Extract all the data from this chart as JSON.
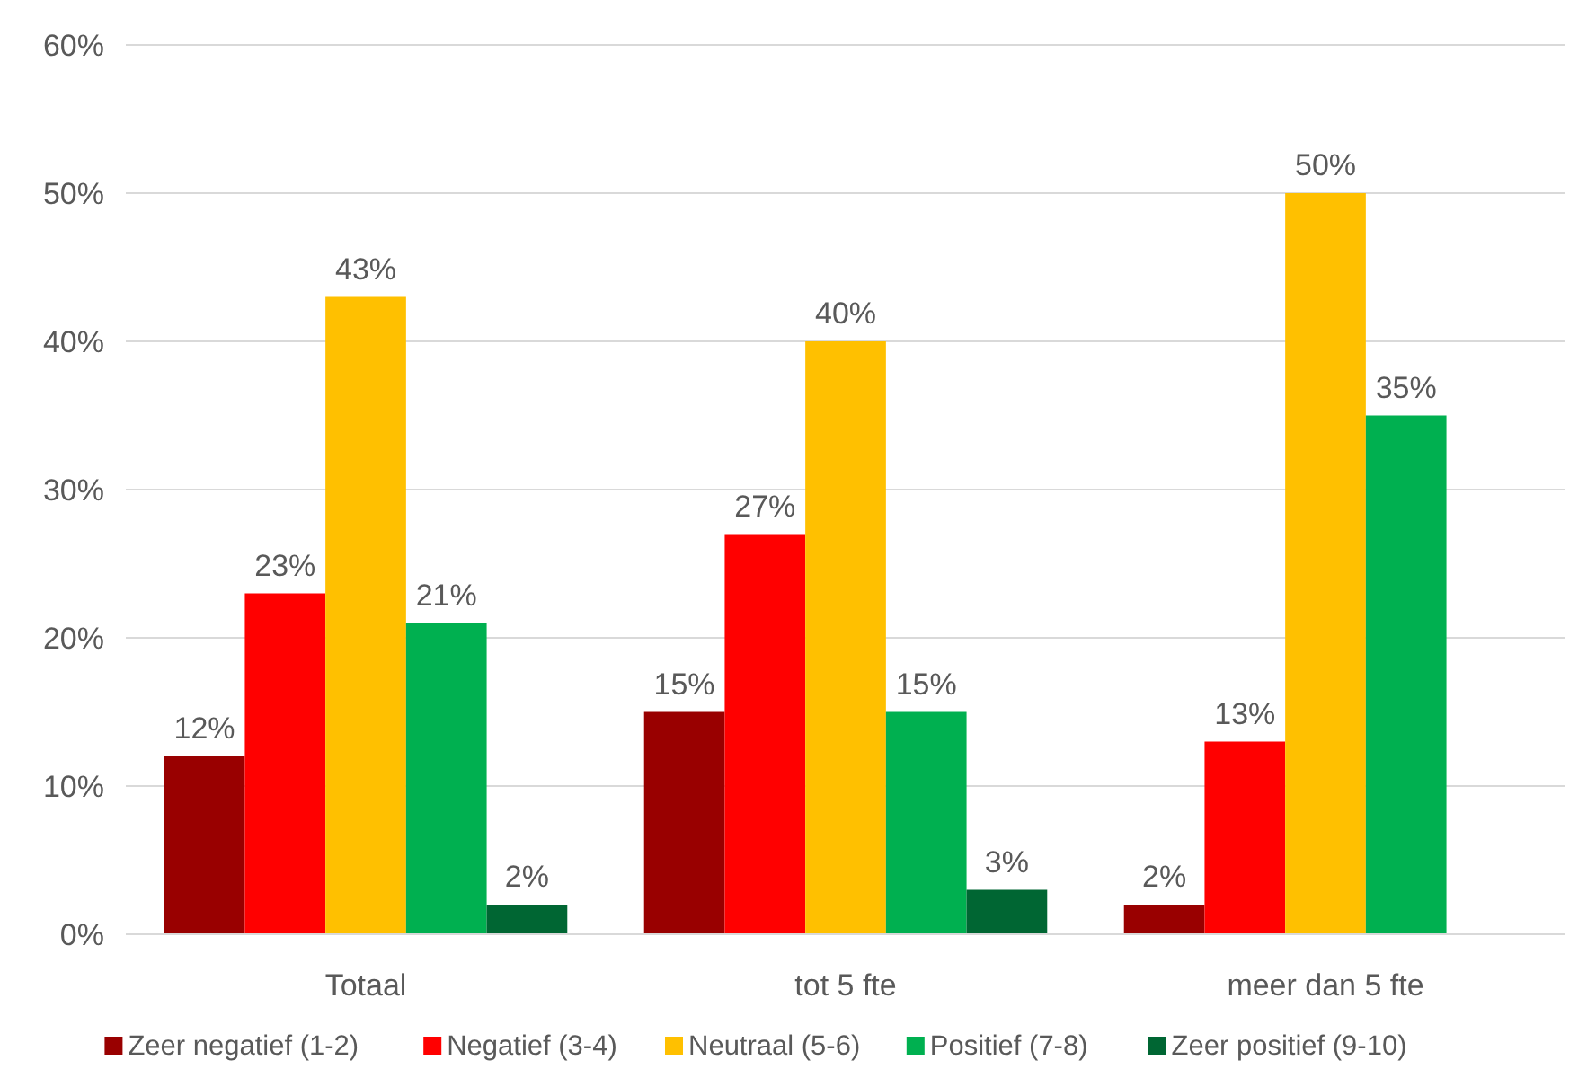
{
  "chart_data": {
    "type": "bar",
    "categories": [
      "Totaal",
      "tot 5 fte",
      "meer dan 5 fte"
    ],
    "series": [
      {
        "name": "Zeer negatief (1-2)",
        "color": "#990000",
        "values": [
          12,
          15,
          2
        ],
        "value_labels": [
          "12%",
          "15%",
          "2%"
        ]
      },
      {
        "name": "Negatief (3-4)",
        "color": "#ff0000",
        "values": [
          23,
          27,
          13
        ],
        "value_labels": [
          "23%",
          "27%",
          "13%"
        ]
      },
      {
        "name": "Neutraal (5-6)",
        "color": "#ffc000",
        "values": [
          43,
          40,
          50
        ],
        "value_labels": [
          "43%",
          "40%",
          "50%"
        ]
      },
      {
        "name": "Positief (7-8)",
        "color": "#00b050",
        "values": [
          21,
          15,
          35
        ],
        "value_labels": [
          "21%",
          "15%",
          "35%"
        ]
      },
      {
        "name": "Zeer positief (9-10)",
        "color": "#006633",
        "values": [
          2,
          3,
          null
        ],
        "value_labels": [
          "2%",
          "3%",
          null
        ]
      }
    ],
    "ylim": [
      0,
      60
    ],
    "yticks": [
      {
        "value": 0,
        "label": "0%"
      },
      {
        "value": 10,
        "label": "10%"
      },
      {
        "value": 20,
        "label": "20%"
      },
      {
        "value": 30,
        "label": "30%"
      },
      {
        "value": 40,
        "label": "40%"
      },
      {
        "value": 50,
        "label": "50%"
      },
      {
        "value": 60,
        "label": "60%"
      }
    ],
    "grid": "y",
    "legend": "bottom"
  }
}
